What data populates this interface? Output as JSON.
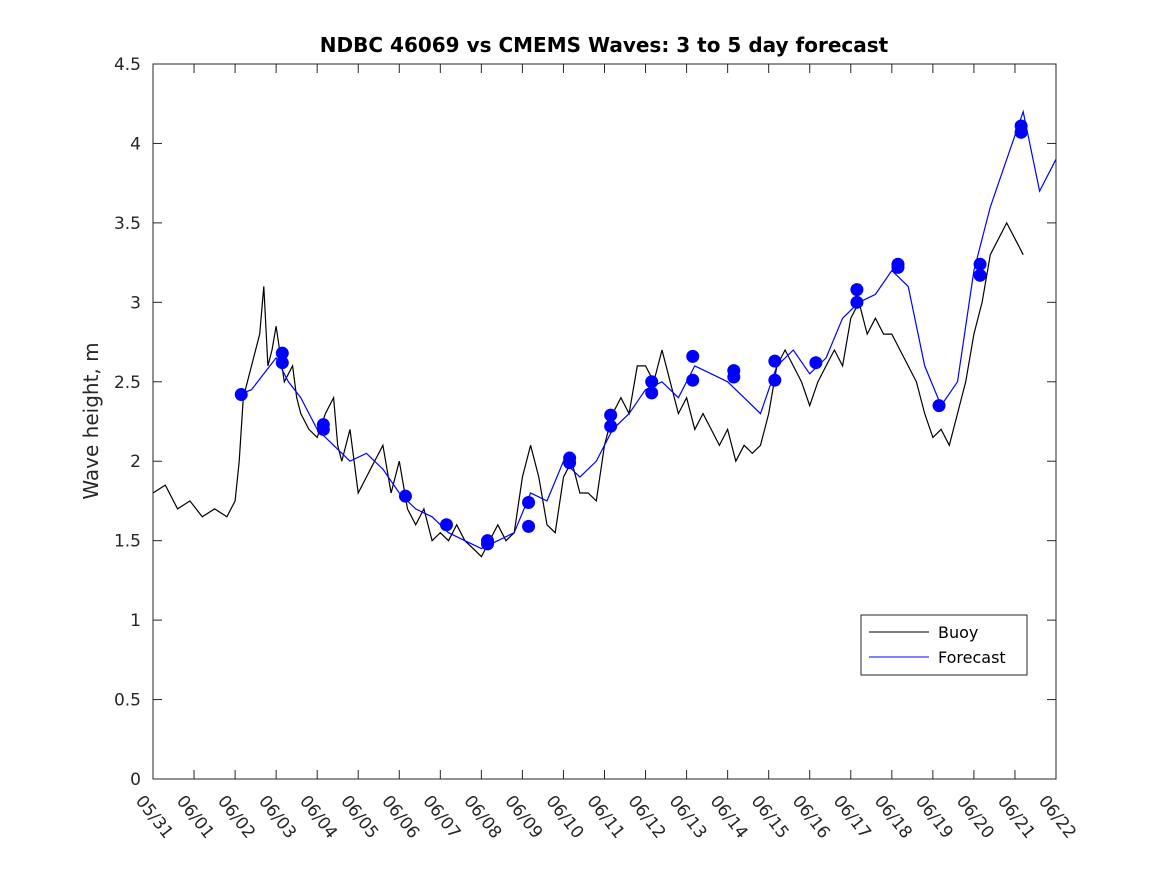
{
  "chart_data": {
    "type": "line",
    "title": "NDBC 46069 vs CMEMS Waves: 3 to 5 day forecast",
    "xlabel": "",
    "ylabel": "Wave height, m",
    "xlim": [
      0,
      22
    ],
    "ylim": [
      0,
      4.5
    ],
    "x_tick_labels": [
      "05/31",
      "06/01",
      "06/02",
      "06/03",
      "06/04",
      "06/05",
      "06/06",
      "06/07",
      "06/08",
      "06/09",
      "06/10",
      "06/11",
      "06/12",
      "06/13",
      "06/14",
      "06/15",
      "06/16",
      "06/17",
      "06/18",
      "06/19",
      "06/20",
      "06/21",
      "06/22"
    ],
    "y_ticks": [
      0,
      0.5,
      1,
      1.5,
      2,
      2.5,
      3,
      3.5,
      4,
      4.5
    ],
    "y_tick_labels": [
      "0",
      "0.5",
      "1",
      "1.5",
      "2",
      "2.5",
      "3",
      "3.5",
      "4",
      "4.5"
    ],
    "grid": false,
    "legend_position": "lower-right",
    "colors": {
      "buoy": "#000000",
      "forecast": "#0000ff"
    },
    "series": [
      {
        "name": "Buoy",
        "x": [
          0.0,
          0.3,
          0.6,
          0.9,
          1.2,
          1.5,
          1.8,
          2.0,
          2.1,
          2.2,
          2.4,
          2.6,
          2.7,
          2.8,
          2.9,
          3.0,
          3.2,
          3.4,
          3.5,
          3.6,
          3.8,
          4.0,
          4.2,
          4.4,
          4.5,
          4.6,
          4.8,
          5.0,
          5.2,
          5.4,
          5.6,
          5.8,
          6.0,
          6.2,
          6.4,
          6.6,
          6.8,
          7.0,
          7.2,
          7.4,
          7.6,
          7.8,
          8.0,
          8.2,
          8.4,
          8.6,
          8.8,
          9.0,
          9.2,
          9.4,
          9.6,
          9.8,
          10.0,
          10.2,
          10.4,
          10.6,
          10.8,
          11.0,
          11.2,
          11.4,
          11.6,
          11.8,
          12.0,
          12.2,
          12.4,
          12.6,
          12.8,
          13.0,
          13.2,
          13.4,
          13.6,
          13.8,
          14.0,
          14.2,
          14.4,
          14.6,
          14.8,
          15.0,
          15.2,
          15.4,
          15.6,
          15.8,
          16.0,
          16.2,
          16.4,
          16.6,
          16.8,
          17.0,
          17.2,
          17.4,
          17.6,
          17.8,
          18.0,
          18.2,
          18.4,
          18.6,
          18.8,
          19.0,
          19.2,
          19.4,
          19.6,
          19.8,
          20.0,
          20.2,
          20.4,
          20.6,
          20.8,
          21.0,
          21.2
        ],
        "values": [
          1.8,
          1.85,
          1.7,
          1.75,
          1.65,
          1.7,
          1.65,
          1.75,
          2.0,
          2.4,
          2.6,
          2.8,
          3.1,
          2.6,
          2.7,
          2.85,
          2.5,
          2.6,
          2.4,
          2.3,
          2.2,
          2.15,
          2.3,
          2.4,
          2.1,
          2.0,
          2.2,
          1.8,
          1.9,
          2.0,
          2.1,
          1.8,
          2.0,
          1.7,
          1.6,
          1.7,
          1.5,
          1.55,
          1.5,
          1.6,
          1.5,
          1.45,
          1.4,
          1.5,
          1.6,
          1.5,
          1.55,
          1.9,
          2.1,
          1.9,
          1.6,
          1.55,
          1.9,
          2.0,
          1.8,
          1.8,
          1.75,
          2.1,
          2.3,
          2.4,
          2.3,
          2.6,
          2.6,
          2.5,
          2.7,
          2.5,
          2.3,
          2.4,
          2.2,
          2.3,
          2.2,
          2.1,
          2.2,
          2.0,
          2.1,
          2.05,
          2.1,
          2.3,
          2.6,
          2.7,
          2.6,
          2.5,
          2.35,
          2.5,
          2.6,
          2.7,
          2.6,
          2.9,
          3.0,
          2.8,
          2.9,
          2.8,
          2.8,
          2.7,
          2.6,
          2.5,
          2.3,
          2.15,
          2.2,
          2.1,
          2.3,
          2.5,
          2.8,
          3.0,
          3.3,
          3.4,
          3.5,
          3.4,
          3.3
        ]
      },
      {
        "name": "Forecast",
        "x": [
          2.1,
          2.4,
          2.7,
          3.0,
          3.3,
          3.6,
          4.0,
          4.4,
          4.8,
          5.2,
          5.6,
          6.0,
          6.4,
          6.8,
          7.2,
          7.6,
          8.0,
          8.4,
          8.8,
          9.2,
          9.6,
          10.0,
          10.4,
          10.8,
          11.2,
          11.6,
          12.0,
          12.4,
          12.8,
          13.2,
          13.6,
          14.0,
          14.4,
          14.8,
          15.2,
          15.6,
          16.0,
          16.4,
          16.8,
          17.2,
          17.6,
          18.0,
          18.4,
          18.8,
          19.2,
          19.6,
          20.0,
          20.4,
          20.8,
          21.2,
          21.6,
          22.0
        ],
        "values": [
          2.42,
          2.45,
          2.55,
          2.65,
          2.5,
          2.4,
          2.2,
          2.1,
          2.0,
          2.05,
          1.95,
          1.8,
          1.7,
          1.65,
          1.55,
          1.5,
          1.45,
          1.5,
          1.55,
          1.8,
          1.75,
          2.0,
          1.9,
          2.0,
          2.2,
          2.3,
          2.45,
          2.5,
          2.4,
          2.6,
          2.55,
          2.5,
          2.4,
          2.3,
          2.6,
          2.7,
          2.55,
          2.65,
          2.9,
          3.0,
          3.05,
          3.2,
          3.1,
          2.6,
          2.35,
          2.5,
          3.2,
          3.6,
          3.9,
          4.2,
          3.7,
          3.9
        ]
      }
    ],
    "forecast_markers": {
      "x": [
        2.15,
        3.15,
        3.15,
        4.15,
        4.15,
        6.15,
        7.15,
        8.15,
        8.15,
        9.15,
        9.15,
        10.15,
        10.15,
        11.15,
        11.15,
        12.15,
        12.15,
        13.15,
        13.15,
        14.15,
        14.15,
        15.15,
        15.15,
        16.15,
        17.15,
        17.15,
        18.15,
        18.15,
        19.15,
        20.15,
        20.15,
        21.15,
        21.15
      ],
      "values": [
        2.42,
        2.68,
        2.62,
        2.23,
        2.2,
        1.78,
        1.6,
        1.5,
        1.48,
        1.74,
        1.59,
        2.02,
        1.99,
        2.29,
        2.22,
        2.5,
        2.43,
        2.66,
        2.51,
        2.57,
        2.53,
        2.63,
        2.51,
        2.62,
        3.08,
        3.0,
        3.24,
        3.22,
        2.35,
        3.24,
        3.17,
        4.11,
        4.07
      ]
    }
  }
}
